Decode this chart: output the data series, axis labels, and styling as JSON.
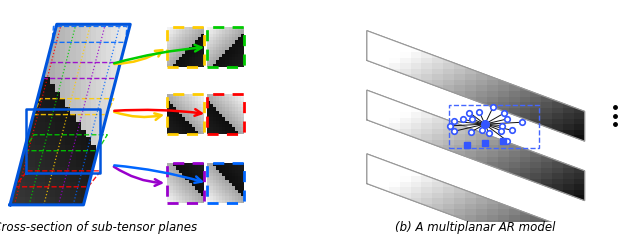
{
  "fig_width": 6.3,
  "fig_height": 2.36,
  "dpi": 100,
  "bg_color": "#ffffff",
  "caption_a": "(a) Cross-section of sub-tensor planes",
  "caption_b": "(b) A multiplanar AR model",
  "caption_fontsize": 8.5,
  "caption_style": "italic",
  "plane_colors": [
    "#ff0000",
    "#00cc00",
    "#ffcc00",
    "#9900cc",
    "#0066ff"
  ],
  "tile_colors_row0": [
    "#ffcc00",
    "#00cc00"
  ],
  "tile_colors_row1": [
    "#ffcc00",
    "#ff0000"
  ],
  "tile_colors_row2": [
    "#9900cc",
    "#0066ff"
  ],
  "arrow_colors_row0": [
    "#ffcc00",
    "#00cc00"
  ],
  "arrow_colors_row1": [
    "#ffcc00",
    "#ff0000"
  ],
  "arrow_colors_row2": [
    "#9900cc",
    "#0066ff"
  ]
}
